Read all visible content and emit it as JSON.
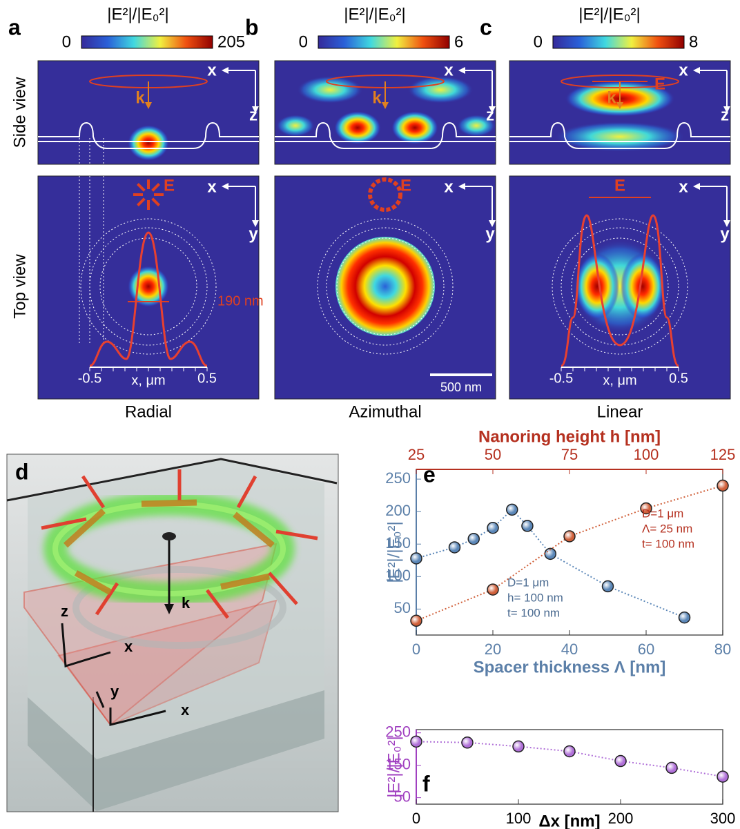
{
  "row_labels": [
    "Side view",
    "Top view"
  ],
  "panels": [
    {
      "label": "a",
      "colorbar": {
        "title": "|E²|/|E₀²|",
        "min": 0,
        "max": 205
      },
      "side": {
        "x": "x",
        "z": "z",
        "k": "k"
      },
      "top": {
        "x": "x",
        "y": "y",
        "E": "E",
        "size": "190 nm",
        "axis": {
          "ticks": [
            -0.5,
            0.5
          ],
          "label": "x, μm"
        }
      },
      "caption": "Radial"
    },
    {
      "label": "b",
      "colorbar": {
        "title": "|E²|/|E₀²|",
        "min": 0,
        "max": 6
      },
      "side": {
        "x": "x",
        "z": "z",
        "k": "k"
      },
      "top": {
        "x": "x",
        "y": "y",
        "E": "E",
        "scale": "500 nm"
      },
      "caption": "Azimuthal"
    },
    {
      "label": "c",
      "colorbar": {
        "title": "|E²|/|E₀²|",
        "min": 0,
        "max": 8
      },
      "side": {
        "x": "x",
        "z": "z",
        "k": "k",
        "E": "E"
      },
      "top": {
        "x": "x",
        "y": "y",
        "E": "E",
        "axis": {
          "ticks": [
            -0.5,
            0.5
          ],
          "label": "x, μm"
        }
      },
      "caption": "Linear"
    }
  ],
  "panel_d": {
    "label": "d",
    "k": "k",
    "axes": [
      "z",
      "x",
      "y",
      "x"
    ]
  },
  "chart_data": [
    {
      "type": "line",
      "label": "e",
      "xlabel": "Spacer thickness Λ [nm]",
      "x2label": "Nanoring height h [nm]",
      "ylabel": "|E²|/|E₀²|",
      "xlim": [
        0,
        80
      ],
      "xticks": [
        0,
        20,
        40,
        60,
        80
      ],
      "x2lim": [
        25,
        125
      ],
      "x2ticks": [
        25,
        50,
        75,
        100,
        125
      ],
      "ylim": [
        10,
        265
      ],
      "yticks": [
        50,
        100,
        150,
        200,
        250
      ],
      "xcolor": "#5b7fa8",
      "x2color": "#b5301f",
      "ycolor": "#5b7fa8",
      "series": [
        {
          "color": "#5b87b8",
          "x": [
            0,
            10,
            15,
            20,
            25,
            29,
            35,
            50,
            70
          ],
          "values": [
            128,
            145,
            158,
            175,
            203,
            178,
            135,
            85,
            37
          ],
          "note": [
            "D=1 μm",
            "h= 100 nm",
            "t= 100 nm"
          ]
        },
        {
          "color": "#d0603a",
          "axis": "x2",
          "x": [
            25,
            50,
            75,
            100,
            125
          ],
          "values": [
            32,
            80,
            162,
            205,
            240
          ],
          "note": [
            "D=1 μm",
            "Λ= 25 nm",
            "t= 100 nm"
          ]
        }
      ]
    },
    {
      "type": "line",
      "label": "f",
      "xlabel": "Δx [nm]",
      "ylabel": "|E²|/|E₀²|",
      "xlim": [
        0,
        300
      ],
      "xticks": [
        0,
        100,
        200,
        300
      ],
      "ylim": [
        30,
        260
      ],
      "yticks": [
        50,
        150,
        250
      ],
      "xcolor": "#000000",
      "ycolor": "#a040c0",
      "series": [
        {
          "color": "#b070d8",
          "x": [
            0,
            50,
            100,
            150,
            200,
            250,
            300
          ],
          "values": [
            223,
            220,
            208,
            193,
            163,
            142,
            115
          ]
        }
      ]
    }
  ]
}
